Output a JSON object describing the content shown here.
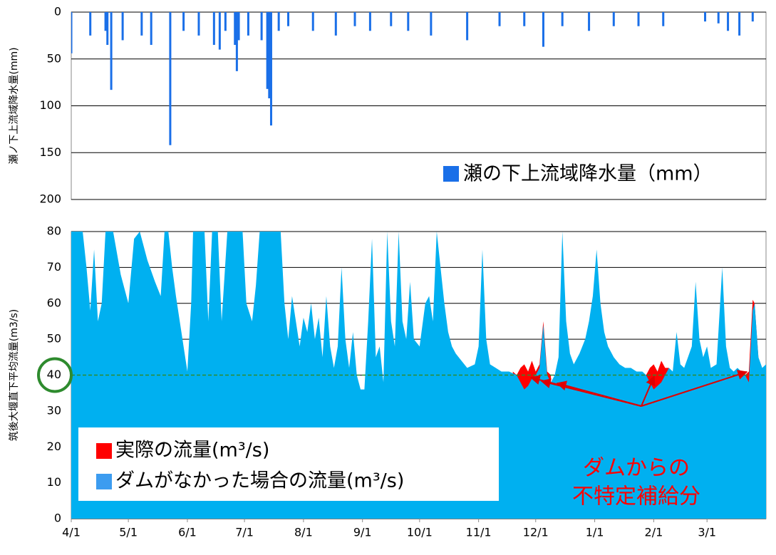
{
  "chart_data": [
    {
      "type": "bar",
      "y_label": "瀬ノ下上流域降水量(mm)",
      "y_inverted": true,
      "xlim": [
        0,
        365
      ],
      "ylim": [
        0,
        200
      ],
      "yticks": [
        0,
        50,
        100,
        150,
        200
      ],
      "grid": true,
      "series": [
        {
          "name": "瀬の下上流域降水量（mm）",
          "color": "#1a6fe8",
          "x": [
            0,
            10,
            18,
            19,
            21,
            27,
            37,
            42,
            52,
            59,
            67,
            75,
            78,
            81,
            86,
            87,
            88,
            93,
            100,
            103,
            104,
            105,
            109,
            114,
            127,
            139,
            149,
            157,
            168,
            177,
            189,
            208,
            225,
            238,
            248,
            258,
            272,
            285,
            298,
            311,
            333,
            340,
            345,
            351,
            358
          ],
          "values": [
            44,
            25,
            20,
            35,
            83,
            30,
            25,
            35,
            142,
            20,
            25,
            35,
            40,
            20,
            35,
            63,
            30,
            25,
            30,
            82,
            92,
            121,
            20,
            15,
            20,
            25,
            15,
            20,
            15,
            20,
            25,
            30,
            15,
            15,
            37,
            15,
            20,
            15,
            15,
            15,
            10,
            12,
            20,
            25,
            10
          ]
        }
      ]
    },
    {
      "type": "area",
      "y_label": "筑後大堰直下平均流量(m3/s)",
      "xlim": [
        0,
        365
      ],
      "ylim": [
        0,
        80
      ],
      "yticks": [
        0,
        10,
        20,
        30,
        40,
        50,
        60,
        70,
        80
      ],
      "grid": true,
      "xticks": [
        {
          "value": 0,
          "label": "4/1"
        },
        {
          "value": 30,
          "label": "5/1"
        },
        {
          "value": 61,
          "label": "6/1"
        },
        {
          "value": 91,
          "label": "7/1"
        },
        {
          "value": 122,
          "label": "8/1"
        },
        {
          "value": 153,
          "label": "9/1"
        },
        {
          "value": 183,
          "label": "10/1"
        },
        {
          "value": 214,
          "label": "11/1"
        },
        {
          "value": 244,
          "label": "12/1"
        },
        {
          "value": 275,
          "label": "1/1"
        },
        {
          "value": 306,
          "label": "2/1"
        },
        {
          "value": 334,
          "label": "3/1"
        }
      ],
      "reference_line": {
        "value": 40,
        "color": "#2e8b2e"
      },
      "annotation": [
        "ダムからの",
        "不特定補給分"
      ],
      "annotation_color": "#ff0000",
      "series": [
        {
          "name": "実際の流量(m³/s)",
          "color": "#ff0000",
          "x": [
            232,
            234,
            236,
            238,
            240,
            242,
            244,
            246,
            248,
            250,
            252,
            253,
            302,
            304,
            306,
            308,
            310,
            312,
            314,
            315,
            354,
            356,
            358,
            359,
            361
          ],
          "values": [
            41,
            40,
            42,
            43,
            41,
            44,
            41,
            43,
            55,
            41,
            40,
            null,
            40,
            42,
            43,
            41,
            44,
            42,
            42,
            null,
            40,
            41,
            61,
            60,
            45
          ]
        },
        {
          "name": "ダムがなかった場合の流量(m³/s)",
          "color": "#00b0f0",
          "legend_color": "#3c9cf0",
          "x": [
            0,
            3,
            6,
            8,
            10,
            12,
            14,
            16,
            18,
            22,
            26,
            30,
            33,
            36,
            40,
            44,
            47,
            49,
            51,
            53,
            55,
            57,
            59,
            61,
            63,
            64,
            70,
            72,
            74,
            77,
            79,
            82,
            90,
            92,
            95,
            97,
            99,
            110,
            112,
            114,
            116,
            118,
            120,
            122,
            124,
            126,
            128,
            130,
            132,
            134,
            136,
            138,
            140,
            142,
            144,
            146,
            148,
            150,
            152,
            154,
            156,
            158,
            160,
            162,
            164,
            166,
            168,
            170,
            172,
            174,
            176,
            178,
            180,
            183,
            186,
            188,
            190,
            192,
            194,
            196,
            198,
            200,
            202,
            205,
            208,
            212,
            214,
            216,
            218,
            220,
            223,
            226,
            230,
            234,
            236,
            238,
            240,
            242,
            244,
            246,
            248,
            250,
            252,
            254,
            256,
            258,
            260,
            262,
            264,
            267,
            270,
            272,
            274,
            276,
            278,
            280,
            282,
            285,
            288,
            291,
            294,
            297,
            300,
            302,
            304,
            306,
            308,
            310,
            312,
            314,
            316,
            318,
            320,
            322,
            324,
            326,
            328,
            330,
            332,
            334,
            336,
            339,
            342,
            344,
            346,
            348,
            350,
            352,
            354,
            356,
            358,
            359,
            361,
            363,
            365
          ],
          "values": [
            80,
            80,
            80,
            70,
            58,
            75,
            55,
            60,
            80,
            80,
            68,
            60,
            78,
            80,
            72,
            66,
            62,
            80,
            80,
            70,
            62,
            55,
            48,
            41,
            60,
            80,
            80,
            55,
            80,
            80,
            55,
            80,
            80,
            60,
            55,
            65,
            80,
            80,
            60,
            50,
            62,
            55,
            48,
            56,
            52,
            60,
            50,
            56,
            45,
            62,
            48,
            42,
            48,
            70,
            50,
            42,
            52,
            40,
            36,
            36,
            55,
            78,
            45,
            48,
            38,
            80,
            55,
            48,
            80,
            55,
            50,
            66,
            50,
            48,
            60,
            62,
            55,
            80,
            70,
            60,
            52,
            48,
            46,
            44,
            42,
            43,
            48,
            75,
            50,
            43,
            42,
            41,
            41,
            40,
            38,
            36,
            37,
            39,
            40,
            42,
            54,
            40,
            38,
            40,
            45,
            80,
            55,
            46,
            43,
            46,
            50,
            55,
            62,
            75,
            60,
            52,
            48,
            45,
            43,
            42,
            42,
            41,
            41,
            40,
            38,
            36,
            37,
            38,
            40,
            42,
            41,
            52,
            43,
            42,
            45,
            48,
            66,
            50,
            45,
            48,
            42,
            43,
            70,
            48,
            42,
            41,
            42,
            41,
            40,
            38,
            58,
            60,
            45,
            42,
            43
          ]
        }
      ]
    }
  ]
}
